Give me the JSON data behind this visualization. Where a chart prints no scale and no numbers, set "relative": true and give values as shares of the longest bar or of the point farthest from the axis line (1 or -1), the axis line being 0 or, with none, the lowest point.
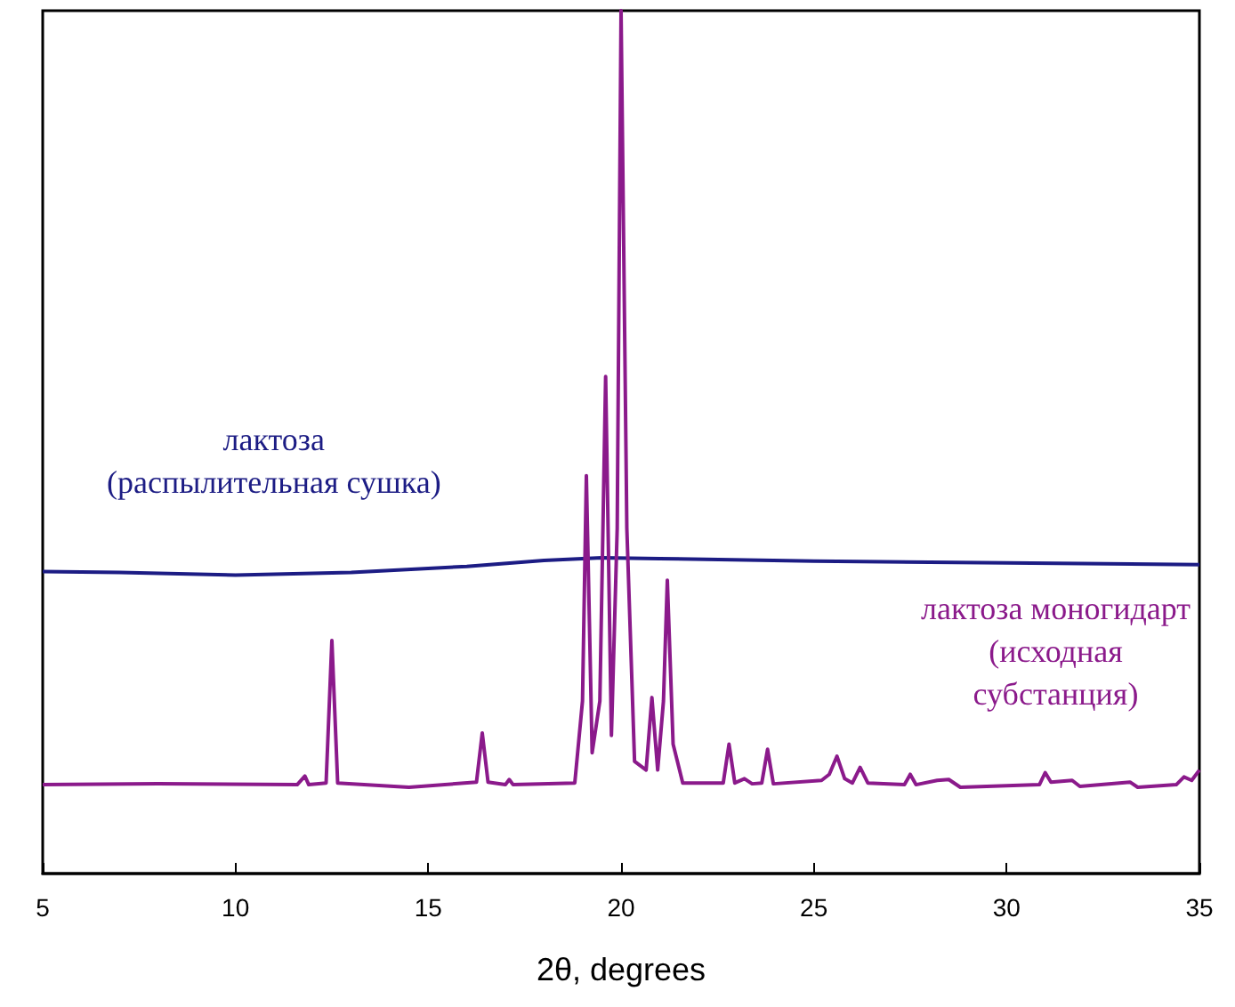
{
  "chart_data": {
    "type": "line",
    "relative": true,
    "xlabel": "2θ, degrees",
    "xlim": [
      5,
      35
    ],
    "xticks": [
      5,
      10,
      15,
      20,
      25,
      30,
      35
    ],
    "grid": false,
    "legend": false,
    "marker": "none",
    "line_style": "solid",
    "series": [
      {
        "name": "лактоза\n(распылительная сушка)",
        "color": "#1c1c84",
        "x": [
          5,
          7,
          10,
          13,
          16,
          18,
          19.5,
          21,
          25,
          30,
          35
        ],
        "values": [
          0.35,
          0.349,
          0.346,
          0.349,
          0.356,
          0.363,
          0.366,
          0.365,
          0.362,
          0.36,
          0.358
        ]
      },
      {
        "name": "лактоза моногидарт\n(исходная\nсубстанция)",
        "color": "#8b1a8b",
        "x": [
          5,
          8,
          11.6,
          11.8,
          11.9,
          12.35,
          12.5,
          12.65,
          14.5,
          16.25,
          16.4,
          16.55,
          17.0,
          17.1,
          17.2,
          18.8,
          19.0,
          19.1,
          19.25,
          19.45,
          19.6,
          19.75,
          19.9,
          20.0,
          20.15,
          20.35,
          20.65,
          20.8,
          20.95,
          21.1,
          21.2,
          21.35,
          21.6,
          22.65,
          22.8,
          22.95,
          23.2,
          23.4,
          23.65,
          23.8,
          23.95,
          25.2,
          25.4,
          25.6,
          25.8,
          26.0,
          26.2,
          26.4,
          27.35,
          27.5,
          27.65,
          28.2,
          28.5,
          28.8,
          30.85,
          31.0,
          31.15,
          31.7,
          31.9,
          33.2,
          33.4,
          34.4,
          34.6,
          34.8,
          35
        ],
        "values": [
          0.103,
          0.104,
          0.103,
          0.113,
          0.103,
          0.105,
          0.27,
          0.105,
          0.1,
          0.106,
          0.163,
          0.106,
          0.103,
          0.109,
          0.103,
          0.105,
          0.2,
          0.461,
          0.14,
          0.2,
          0.576,
          0.16,
          0.4,
          1.0,
          0.4,
          0.13,
          0.12,
          0.204,
          0.12,
          0.2,
          0.34,
          0.15,
          0.105,
          0.105,
          0.15,
          0.105,
          0.11,
          0.104,
          0.105,
          0.144,
          0.104,
          0.108,
          0.115,
          0.136,
          0.11,
          0.105,
          0.123,
          0.105,
          0.103,
          0.115,
          0.103,
          0.108,
          0.109,
          0.1,
          0.103,
          0.117,
          0.106,
          0.108,
          0.101,
          0.106,
          0.1,
          0.103,
          0.112,
          0.108,
          0.12
        ]
      }
    ]
  }
}
